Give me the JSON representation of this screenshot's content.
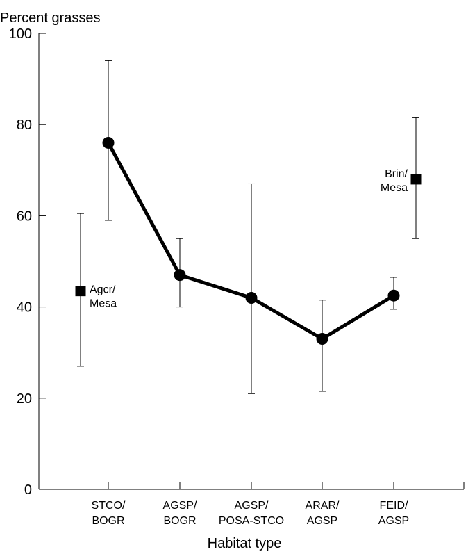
{
  "chart_data": {
    "type": "line",
    "ylabel": "Percent grasses",
    "xlabel": "Habitat type",
    "ylim": [
      0,
      100
    ],
    "yticks": [
      0,
      20,
      40,
      60,
      80,
      100
    ],
    "categories": [
      [
        "STCO/",
        "BOGR"
      ],
      [
        "AGSP/",
        "BOGR"
      ],
      [
        "AGSP/",
        "POSA-STCO"
      ],
      [
        "ARAR/",
        "AGSP"
      ],
      [
        "FEID/",
        "AGSP"
      ]
    ],
    "series": [
      {
        "marker": "circle",
        "connected": true,
        "values": [
          76,
          47,
          42,
          33,
          42.5
        ],
        "err_low": [
          59,
          40,
          21,
          21.5,
          39.5
        ],
        "err_high": [
          94,
          55,
          67,
          41.5,
          46.5
        ]
      }
    ],
    "extra_points": [
      {
        "label": [
          "Agcr/",
          "Mesa"
        ],
        "position": "before-first-category",
        "marker": "square",
        "value": 43.5,
        "err_low": 27,
        "err_high": 60.5
      },
      {
        "label": [
          "Brin/",
          "Mesa"
        ],
        "position": "after-last-category",
        "marker": "square",
        "value": 68,
        "err_low": 55,
        "err_high": 81.5
      }
    ],
    "grid": false
  }
}
